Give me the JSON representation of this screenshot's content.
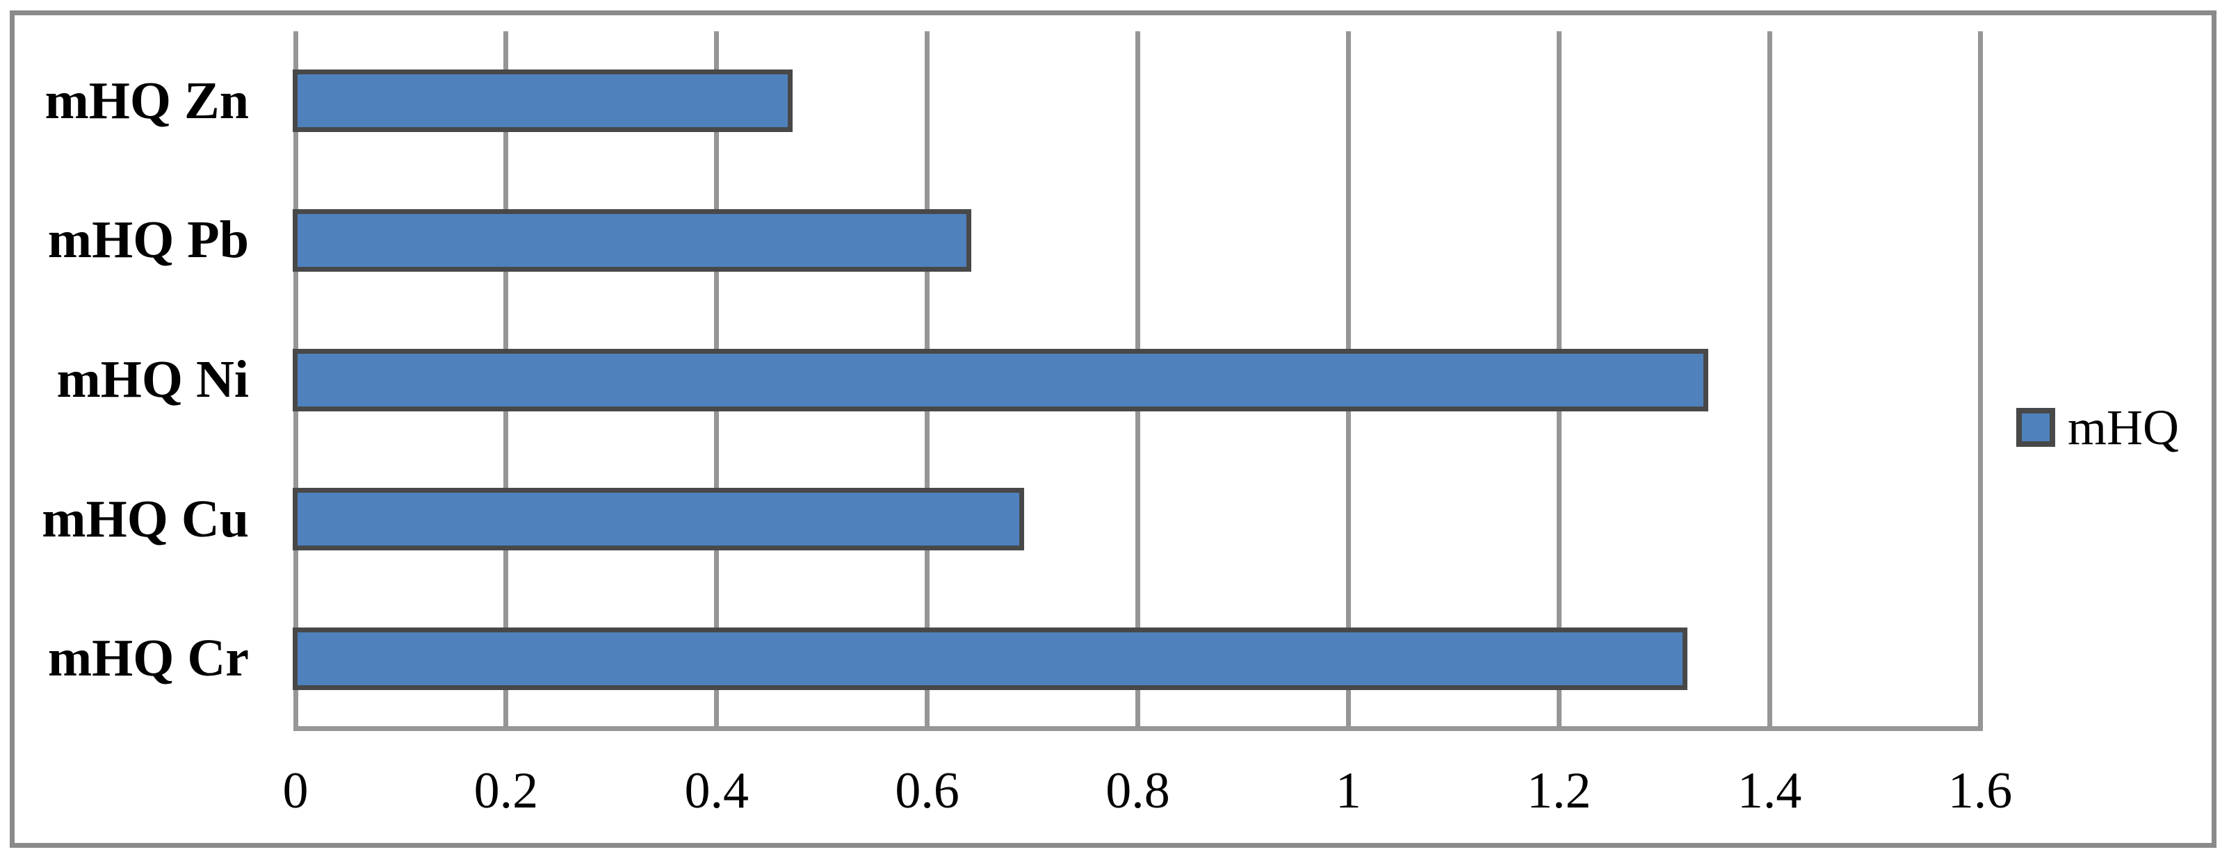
{
  "chart_data": {
    "type": "bar",
    "orientation": "horizontal",
    "title": "",
    "xlabel": "",
    "ylabel": "",
    "categories": [
      "mHQ Zn",
      "mHQ Pb",
      "mHQ Ni",
      "mHQ Cu",
      "mHQ Cr"
    ],
    "series": [
      {
        "name": "mHQ",
        "values": [
          0.47,
          0.64,
          1.34,
          0.69,
          1.32
        ]
      }
    ],
    "xlim": [
      0,
      1.6
    ],
    "x_tick_labels": [
      "0",
      "0.2",
      "0.4",
      "0.6",
      "0.8",
      "1",
      "1.2",
      "1.4",
      "1.6"
    ],
    "x_tick_values": [
      0,
      0.2,
      0.4,
      0.6,
      0.8,
      1,
      1.2,
      1.4,
      1.6
    ],
    "grid": "vertical-on",
    "legend": {
      "position": "right",
      "entries": [
        {
          "label": "mHQ"
        }
      ]
    },
    "colors": {
      "bar_fill": "#4F81BD",
      "bar_border": "#484848",
      "gridline": "#969696",
      "chart_border": "#8A8A8A",
      "text": "#000000",
      "background": "#FFFFFF"
    }
  }
}
